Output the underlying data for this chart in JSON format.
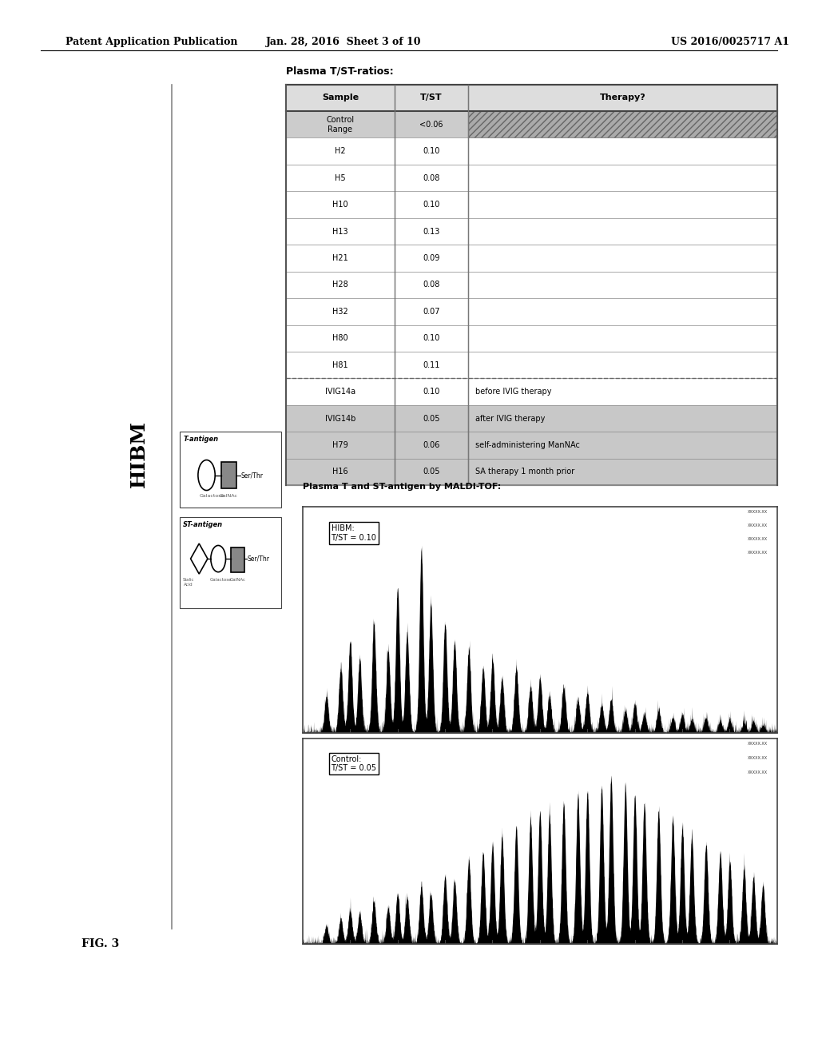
{
  "header_left": "Patent Application Publication",
  "header_mid": "Jan. 28, 2016  Sheet 3 of 10",
  "header_right": "US 2016/0025717 A1",
  "fig_label": "FIG. 3",
  "hibm_label": "HIBM",
  "table_title": "Plasma T/ST-ratios:",
  "table_headers": [
    "Sample",
    "T/ST",
    "Therapy?"
  ],
  "table_rows": [
    [
      "Control\nRange",
      "<0.06",
      ""
    ],
    [
      "H2",
      "0.10",
      ""
    ],
    [
      "H5",
      "0.08",
      ""
    ],
    [
      "H10",
      "0.10",
      ""
    ],
    [
      "H13",
      "0.13",
      ""
    ],
    [
      "H21",
      "0.09",
      ""
    ],
    [
      "H28",
      "0.08",
      ""
    ],
    [
      "H32",
      "0.07",
      ""
    ],
    [
      "H80",
      "0.10",
      ""
    ],
    [
      "H81",
      "0.11",
      ""
    ],
    [
      "IVIG14a",
      "0.10",
      "before IVIG therapy"
    ],
    [
      "IVIG14b",
      "0.05",
      "after IVIG therapy"
    ],
    [
      "H79",
      "0.06",
      "self-administering ManNAc"
    ],
    [
      "H16",
      "0.05",
      "SA therapy 1 month prior"
    ]
  ],
  "maldi_label_top": "Plasma T and ST-antigen by MALDI-TOF:",
  "hibm_box_text": "HIBM:\nT/ST = 0.10",
  "control_box_text": "Control:\nT/ST = 0.05",
  "t_antigen_label": "T-antigen",
  "st_antigen_label": "ST-antigen",
  "bg_color": "#ffffff",
  "table_border_color": "#555555",
  "control_range_bg": "#cccccc",
  "shaded_rows_bg": "#d0d0d0"
}
